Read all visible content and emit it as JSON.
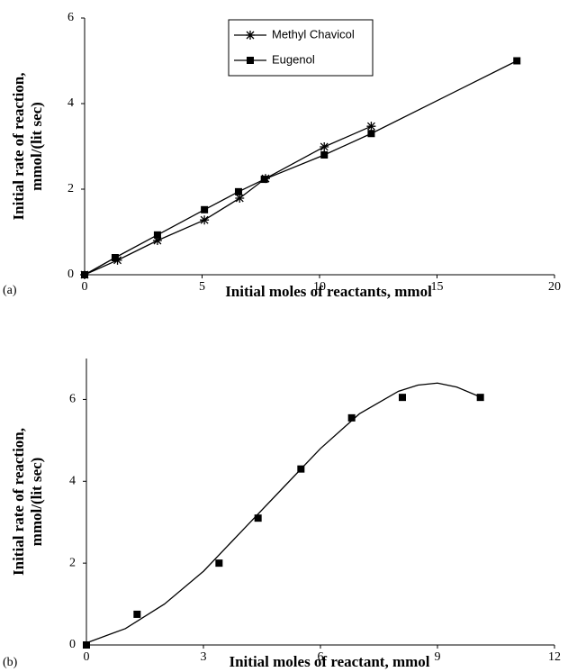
{
  "chart_data": [
    {
      "type": "line",
      "panel": "(a)",
      "xlabel": "Initial moles of reactants, mmol",
      "ylabel": [
        "Initial rate of reaction,",
        "mmol/(lit sec)"
      ],
      "xlim": [
        0,
        20
      ],
      "xticks": [
        0,
        5,
        10,
        15,
        20
      ],
      "ylim": [
        0,
        6
      ],
      "yticks": [
        0,
        2,
        4,
        6
      ],
      "legend": "top",
      "series": [
        {
          "name": "Methyl Chavicol",
          "color": "#000000",
          "marker": "asterisk",
          "x": [
            0,
            1.4,
            3.1,
            5.1,
            6.6,
            7.7,
            10.2,
            12.2
          ],
          "values": [
            0,
            0.34,
            0.8,
            1.28,
            1.79,
            2.25,
            2.99,
            3.47
          ]
        },
        {
          "name": "Eugenol",
          "color": "#000000",
          "marker": "square",
          "x": [
            0,
            1.3,
            3.1,
            5.1,
            6.55,
            7.65,
            10.2,
            12.2,
            18.4
          ],
          "values": [
            0,
            0.4,
            0.93,
            1.52,
            1.94,
            2.23,
            2.8,
            3.3,
            5.0
          ]
        }
      ]
    },
    {
      "type": "scatter",
      "panel": "(b)",
      "xlabel": "Initial moles of reactant, mmol",
      "ylabel": [
        "Initial rate of reaction,",
        "mmol/(lit sec)"
      ],
      "xlim": [
        0,
        12
      ],
      "xticks": [
        0,
        3,
        6,
        9,
        12
      ],
      "ylim": [
        0,
        7
      ],
      "yticks": [
        0,
        2,
        4,
        6
      ],
      "series": [
        {
          "color": "#000000",
          "marker": "square",
          "x": [
            0,
            1.3,
            3.4,
            4.4,
            5.5,
            6.8,
            8.1,
            10.1
          ],
          "values": [
            0,
            0.75,
            2.0,
            3.1,
            4.3,
            5.55,
            6.05,
            6.05
          ]
        },
        {
          "color": "#000000",
          "marker": "none",
          "x": [
            0,
            1,
            2,
            3,
            4,
            5,
            6,
            7,
            8,
            8.5,
            9,
            9.5,
            10,
            10.1
          ],
          "values": [
            0.05,
            0.4,
            1.0,
            1.8,
            2.8,
            3.8,
            4.8,
            5.65,
            6.2,
            6.35,
            6.4,
            6.3,
            6.1,
            6.05
          ]
        }
      ]
    }
  ]
}
